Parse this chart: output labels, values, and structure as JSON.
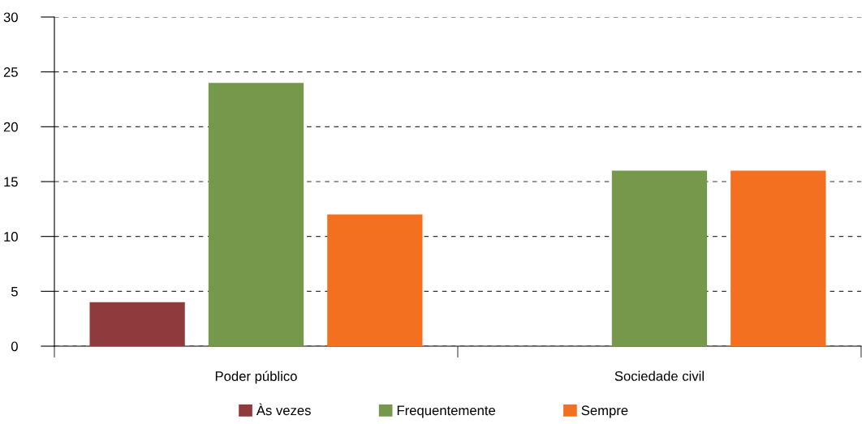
{
  "chart_data": {
    "type": "bar",
    "categories": [
      "Poder público",
      "Sociedade civil"
    ],
    "series": [
      {
        "name": "Às vezes",
        "color": "#8f3a3c",
        "values": [
          4,
          0
        ]
      },
      {
        "name": "Frequentemente",
        "color": "#76984a",
        "values": [
          24,
          16
        ]
      },
      {
        "name": "Sempre",
        "color": "#f37021",
        "values": [
          12,
          16
        ]
      }
    ],
    "ylim": [
      0,
      30
    ],
    "yticks": [
      0,
      5,
      10,
      15,
      20,
      25,
      30
    ],
    "grid": "y",
    "legend": "bottom"
  }
}
